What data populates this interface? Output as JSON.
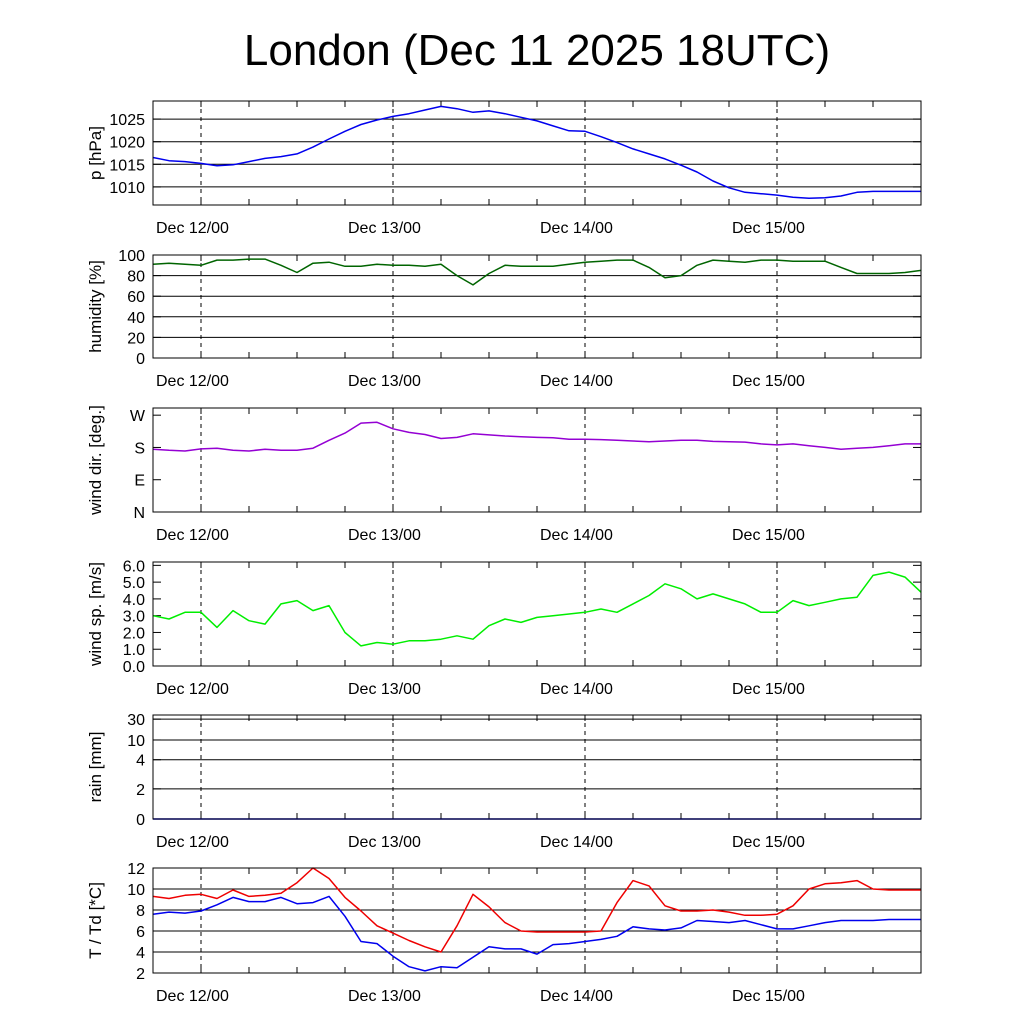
{
  "title": "London (Dec 11 2025 18UTC)",
  "colors": {
    "pressure": "#0000ee",
    "humidity": "#006400",
    "wind_dir": "#9400d3",
    "wind_speed": "#00ee00",
    "rain": "#0000ee",
    "temperature": "#ee0000",
    "dewpoint": "#0000ee"
  },
  "chart_data": [
    {
      "type": "line",
      "id": "pressure",
      "ylabel": "p [hPa]",
      "x_ticks": [
        "Dec 12/00",
        "Dec 13/00",
        "Dec 14/00",
        "Dec 15/00"
      ],
      "y_ticks": [
        "1010",
        "1015",
        "1020",
        "1025"
      ],
      "ylim": [
        1006,
        1029
      ],
      "xlim_hours": [
        0,
        96
      ],
      "grid": "horizontal at ticks",
      "series": [
        {
          "color": "pressure",
          "x_hours": [
            0,
            2,
            4,
            6,
            8,
            10,
            12,
            14,
            16,
            18,
            20,
            22,
            24,
            26,
            28,
            30,
            32,
            34,
            36,
            38,
            40,
            42,
            44,
            46,
            48,
            50,
            52,
            54,
            56,
            58,
            60,
            62,
            64,
            66,
            68,
            70,
            72,
            74,
            76,
            78,
            80,
            82,
            84,
            86,
            88,
            90,
            92,
            94,
            96
          ],
          "values": [
            1016.5,
            1015.8,
            1015.6,
            1015.2,
            1014.7,
            1014.9,
            1015.6,
            1016.3,
            1016.7,
            1017.3,
            1018.8,
            1020.6,
            1022.3,
            1023.8,
            1024.8,
            1025.6,
            1026.2,
            1027.0,
            1027.8,
            1027.3,
            1026.5,
            1026.8,
            1026.2,
            1025.4,
            1024.6,
            1023.5,
            1022.4,
            1022.3,
            1021.1,
            1019.8,
            1018.4,
            1017.3,
            1016.2,
            1014.8,
            1013.3,
            1011.3,
            1009.8,
            1008.8,
            1008.5,
            1008.2,
            1007.7,
            1007.5,
            1007.6,
            1008.0,
            1008.8,
            1009.0,
            1009.0,
            1009.0,
            1009.0
          ]
        }
      ]
    },
    {
      "type": "line",
      "id": "humidity",
      "ylabel": "humidity [%]",
      "x_ticks": [
        "Dec 12/00",
        "Dec 13/00",
        "Dec 14/00",
        "Dec 15/00"
      ],
      "y_ticks": [
        "0",
        "20",
        "40",
        "60",
        "80",
        "100"
      ],
      "ylim": [
        0,
        100
      ],
      "xlim_hours": [
        0,
        96
      ],
      "grid": "horizontal at ticks",
      "series": [
        {
          "color": "humidity",
          "x_hours": [
            0,
            2,
            4,
            6,
            8,
            10,
            12,
            14,
            16,
            18,
            20,
            22,
            24,
            26,
            28,
            30,
            32,
            34,
            36,
            38,
            40,
            42,
            44,
            46,
            48,
            50,
            52,
            54,
            56,
            58,
            60,
            62,
            64,
            66,
            68,
            70,
            72,
            74,
            76,
            78,
            80,
            82,
            84,
            86,
            88,
            90,
            92,
            94,
            96
          ],
          "values": [
            91,
            92,
            91,
            90,
            95,
            95,
            96,
            96,
            90,
            83,
            92,
            93,
            89,
            89,
            91,
            90,
            90,
            89,
            91,
            80,
            71,
            82,
            90,
            89,
            89,
            89,
            91,
            93,
            94,
            95,
            95,
            88,
            78,
            80,
            90,
            95,
            94,
            93,
            95,
            95,
            94,
            94,
            94,
            88,
            82,
            82,
            82,
            83,
            85
          ]
        }
      ]
    },
    {
      "type": "line",
      "id": "wind_dir",
      "ylabel": "wind dir. [deg.]",
      "x_ticks": [
        "Dec 12/00",
        "Dec 13/00",
        "Dec 14/00",
        "Dec 15/00"
      ],
      "y_ticks": [
        "N",
        "E",
        "S",
        "W"
      ],
      "ylim": [
        0,
        290
      ],
      "xlim_hours": [
        0,
        96
      ],
      "grid": "none",
      "series": [
        {
          "color": "wind_dir",
          "x_hours": [
            0,
            2,
            4,
            6,
            8,
            10,
            12,
            14,
            16,
            18,
            20,
            22,
            24,
            26,
            28,
            30,
            32,
            34,
            36,
            38,
            40,
            42,
            44,
            46,
            48,
            50,
            52,
            54,
            56,
            58,
            60,
            62,
            64,
            66,
            68,
            70,
            72,
            74,
            76,
            78,
            80,
            82,
            84,
            86,
            88,
            90,
            92,
            94,
            96
          ],
          "values": [
            175,
            172,
            170,
            176,
            178,
            172,
            170,
            175,
            172,
            172,
            178,
            200,
            220,
            248,
            250,
            232,
            222,
            216,
            205,
            208,
            218,
            215,
            212,
            210,
            208,
            207,
            203,
            203,
            202,
            200,
            198,
            196,
            198,
            200,
            200,
            197,
            196,
            195,
            190,
            187,
            190,
            185,
            180,
            175,
            178,
            180,
            185,
            190,
            190
          ]
        }
      ]
    },
    {
      "type": "line",
      "id": "wind_speed",
      "ylabel": "wind sp. [m/s]",
      "x_ticks": [
        "Dec 12/00",
        "Dec 13/00",
        "Dec 14/00",
        "Dec 15/00"
      ],
      "y_ticks": [
        "0.0",
        "1.0",
        "2.0",
        "3.0",
        "4.0",
        "5.0",
        "6.0"
      ],
      "ylim": [
        0,
        6.2
      ],
      "xlim_hours": [
        0,
        96
      ],
      "grid": "none",
      "series": [
        {
          "color": "wind_speed",
          "x_hours": [
            0,
            2,
            4,
            6,
            8,
            10,
            12,
            14,
            16,
            18,
            20,
            22,
            24,
            26,
            28,
            30,
            32,
            34,
            36,
            38,
            40,
            42,
            44,
            46,
            48,
            50,
            52,
            54,
            56,
            58,
            60,
            62,
            64,
            66,
            68,
            70,
            72,
            74,
            76,
            78,
            80,
            82,
            84,
            86,
            88,
            90,
            92,
            94,
            96
          ],
          "values": [
            3.0,
            2.8,
            3.2,
            3.2,
            2.3,
            3.3,
            2.7,
            2.5,
            3.7,
            3.9,
            3.3,
            3.6,
            2.0,
            1.2,
            1.4,
            1.3,
            1.5,
            1.5,
            1.6,
            1.8,
            1.6,
            2.4,
            2.8,
            2.6,
            2.9,
            3.0,
            3.1,
            3.2,
            3.4,
            3.2,
            3.7,
            4.2,
            4.9,
            4.6,
            4.0,
            4.3,
            4.0,
            3.7,
            3.2,
            3.2,
            3.9,
            3.6,
            3.8,
            4.0,
            4.1,
            5.4,
            5.6,
            5.3,
            4.4
          ]
        }
      ]
    },
    {
      "type": "line",
      "id": "rain",
      "ylabel": "rain [mm]",
      "x_ticks": [
        "Dec 12/00",
        "Dec 13/00",
        "Dec 14/00",
        "Dec 15/00"
      ],
      "y_ticks": [
        "0",
        "2",
        "4",
        "10",
        "30"
      ],
      "ylim": [
        0,
        30
      ],
      "xlim_hours": [
        0,
        96
      ],
      "grid": "horizontal at ticks",
      "series": [
        {
          "color": "rain",
          "x_hours": [
            0,
            96
          ],
          "values": [
            0,
            0
          ]
        }
      ]
    },
    {
      "type": "line",
      "id": "temperature",
      "ylabel": "T / Td [*C]",
      "x_ticks": [
        "Dec 12/00",
        "Dec 13/00",
        "Dec 14/00",
        "Dec 15/00"
      ],
      "y_ticks": [
        "2",
        "4",
        "6",
        "8",
        "10",
        "12"
      ],
      "ylim": [
        2,
        12
      ],
      "xlim_hours": [
        0,
        96
      ],
      "grid": "horizontal at ticks",
      "series": [
        {
          "color": "temperature",
          "x_hours": [
            0,
            2,
            4,
            6,
            8,
            10,
            12,
            14,
            16,
            18,
            20,
            22,
            24,
            26,
            28,
            30,
            32,
            34,
            36,
            38,
            40,
            42,
            44,
            46,
            48,
            50,
            52,
            54,
            56,
            58,
            60,
            62,
            64,
            66,
            68,
            70,
            72,
            74,
            76,
            78,
            80,
            82,
            84,
            86,
            88,
            90,
            92,
            94,
            96
          ],
          "values": [
            9.3,
            9.1,
            9.4,
            9.5,
            9.1,
            9.9,
            9.3,
            9.4,
            9.6,
            10.6,
            12.0,
            11.0,
            9.2,
            7.9,
            6.5,
            5.8,
            5.1,
            4.5,
            4.0,
            6.5,
            9.5,
            8.3,
            6.8,
            6.0,
            5.9,
            5.9,
            5.9,
            5.9,
            6.0,
            8.7,
            10.8,
            10.3,
            8.4,
            7.9,
            7.9,
            8.0,
            7.8,
            7.5,
            7.5,
            7.6,
            8.4,
            10.0,
            10.5,
            10.6,
            10.8,
            10.0,
            9.9,
            9.9,
            9.9
          ]
        },
        {
          "color": "dewpoint",
          "x_hours": [
            0,
            2,
            4,
            6,
            8,
            10,
            12,
            14,
            16,
            18,
            20,
            22,
            24,
            26,
            28,
            30,
            32,
            34,
            36,
            38,
            40,
            42,
            44,
            46,
            48,
            50,
            52,
            54,
            56,
            58,
            60,
            62,
            64,
            66,
            68,
            70,
            72,
            74,
            76,
            78,
            80,
            82,
            84,
            86,
            88,
            90,
            92,
            94,
            96
          ],
          "values": [
            7.6,
            7.8,
            7.7,
            7.9,
            8.5,
            9.2,
            8.8,
            8.8,
            9.2,
            8.6,
            8.7,
            9.3,
            7.4,
            5.0,
            4.8,
            3.6,
            2.6,
            2.2,
            2.6,
            2.5,
            3.5,
            4.5,
            4.3,
            4.3,
            3.8,
            4.7,
            4.8,
            5.0,
            5.2,
            5.5,
            6.4,
            6.2,
            6.1,
            6.3,
            7.0,
            6.9,
            6.8,
            7.0,
            6.6,
            6.2,
            6.2,
            6.5,
            6.8,
            7.0,
            7.0,
            7.0,
            7.1,
            7.1,
            7.1
          ]
        }
      ]
    }
  ]
}
